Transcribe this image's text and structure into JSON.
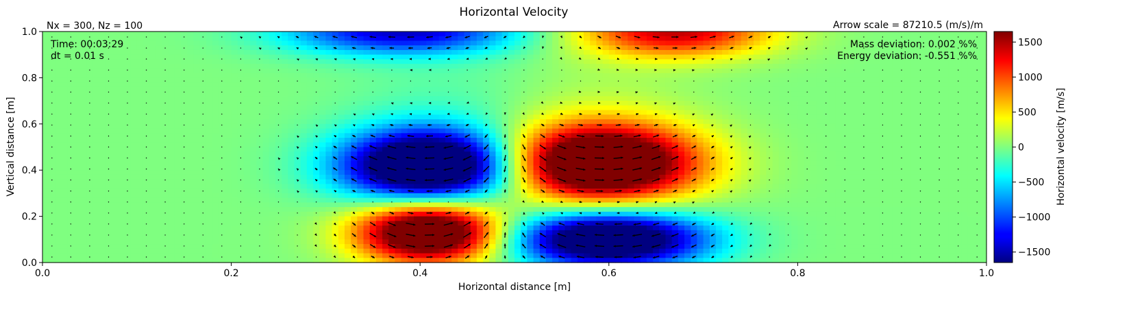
{
  "chart_data": {
    "type": "heatmap",
    "title": "Horizontal Velocity",
    "xlabel": "Horizontal distance [m]",
    "ylabel": "Vertical distance [m]",
    "xlim": [
      0.0,
      1.0
    ],
    "ylim": [
      0.0,
      1.0
    ],
    "x_ticks": [
      "0.0",
      "0.2",
      "0.4",
      "0.6",
      "0.8",
      "1.0"
    ],
    "y_ticks": [
      "0.0",
      "0.2",
      "0.4",
      "0.6",
      "0.8",
      "1.0"
    ],
    "grid_note": "Nx = 300, Nz = 100",
    "arrow_scale": "Arrow scale = 87210.5 (m/s)/m",
    "time_text": "Time: 00:03:29",
    "dt_text": "dt = 0.01 s",
    "mass_text": "Mass deviation: 0.002 %%",
    "energy_text": "Energy deviation: -0.551 %%",
    "colorbar": {
      "label": "Horizontal velocity [m/s]",
      "range": [
        -1650,
        1650
      ],
      "ticks": [
        "1500",
        "1000",
        "500",
        "0",
        "−500",
        "−1000",
        "−1500"
      ],
      "tick_values": [
        1500,
        1000,
        500,
        0,
        -500,
        -1000,
        -1500
      ],
      "colormap": "jet"
    },
    "features": [
      {
        "x": 0.41,
        "y": 0.42,
        "u": -1650
      },
      {
        "x": 0.59,
        "y": 0.43,
        "u": 1650
      },
      {
        "x": 0.41,
        "y": 0.13,
        "u": 1650
      },
      {
        "x": 0.6,
        "y": 0.1,
        "u": -1650
      },
      {
        "x": 0.38,
        "y": 0.97,
        "u": -1400
      },
      {
        "x": 0.67,
        "y": 0.97,
        "u": 1350
      }
    ]
  }
}
